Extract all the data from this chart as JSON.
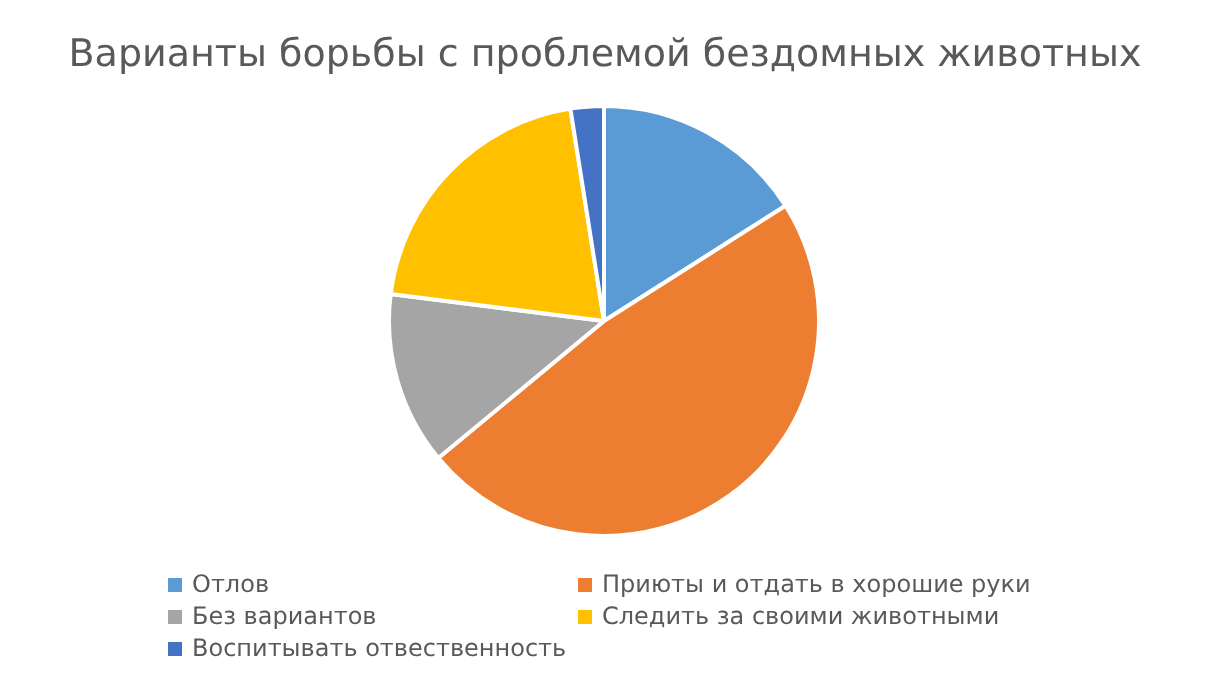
{
  "chart_data": {
    "type": "pie",
    "title": "Варианты борьбы с проблемой бездомных животных",
    "categories": [
      "Отлов",
      "Приюты и отдать в хорошие руки",
      "Без вариантов",
      "Следить за своими животными",
      "Воспитывать отвественность"
    ],
    "values": [
      16,
      48,
      13,
      20.5,
      2.5
    ],
    "colors": [
      "#5b9bd5",
      "#ed7d31",
      "#a5a5a5",
      "#ffc000",
      "#4472c4"
    ],
    "legend": "bottom"
  }
}
